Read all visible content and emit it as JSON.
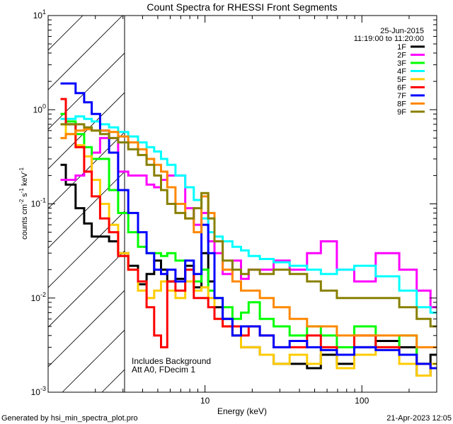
{
  "chart_data": {
    "type": "line",
    "title": "Count Spectra for RHESSI Front Segments",
    "xlabel": "Energy (keV)",
    "ylabel": "counts cm",
    "ylabel_sup1": "-2",
    "ylabel_mid": " s",
    "ylabel_sup2": "-1",
    "ylabel_end": " keV",
    "ylabel_sup3": "-1",
    "xscale": "log",
    "yscale": "log",
    "xlim": [
      1,
      300
    ],
    "ylim": [
      0.001,
      10
    ],
    "xticks": [
      {
        "value": 10,
        "label": "10"
      },
      {
        "value": 100,
        "label": "100"
      }
    ],
    "y_exponent_labels": [
      {
        "value": 0.001,
        "base": "10",
        "exp": "-3"
      },
      {
        "value": 0.01,
        "base": "10",
        "exp": "-2"
      },
      {
        "value": 0.1,
        "base": "10",
        "exp": "-1"
      },
      {
        "value": 1,
        "base": "10",
        "exp": "0"
      },
      {
        "value": 10,
        "base": "10",
        "exp": "1"
      }
    ],
    "date": "25-Jun-2015",
    "time_range": "11:19:00 to 11:20:00",
    "hatched_region": [
      1,
      3
    ],
    "annotation_lines": [
      "Includes Background",
      "Att A0, FDecim 1"
    ],
    "footer_left": "Generated by hsi_min_spectra_plot.pro",
    "footer_right": "21-Apr-2023 12:05",
    "series": [
      {
        "name": "1F",
        "color": "#000000",
        "x": [
          1.2,
          1.4,
          1.6,
          1.8,
          2.0,
          2.3,
          2.6,
          3.0,
          3.5,
          4.0,
          4.5,
          5.0,
          5.5,
          6.0,
          7.0,
          8.0,
          9.0,
          10.0,
          11.0,
          12.0,
          14.0,
          16.0,
          18.0,
          20.0,
          25.0,
          30.0,
          40.0,
          50.0,
          60.0,
          80.0,
          100.0,
          150.0,
          200.0,
          250.0,
          300.0
        ],
        "y": [
          0.26,
          0.16,
          0.09,
          0.062,
          0.045,
          0.045,
          0.04,
          0.03,
          0.022,
          0.014,
          0.018,
          0.025,
          0.02,
          0.015,
          0.016,
          0.022,
          0.013,
          0.03,
          0.015,
          0.008,
          0.006,
          0.004,
          0.003,
          0.003,
          0.0025,
          0.002,
          0.002,
          0.0018,
          0.0025,
          0.002,
          0.003,
          0.0035,
          0.003,
          0.0015,
          0.0025
        ]
      },
      {
        "name": "2F",
        "color": "#ff00ff",
        "x": [
          1.2,
          1.4,
          1.6,
          1.8,
          2.0,
          2.3,
          2.6,
          3.0,
          3.5,
          4.0,
          4.5,
          5.0,
          5.5,
          6.0,
          7.0,
          8.0,
          9.0,
          10.0,
          11.0,
          12.0,
          14.0,
          16.0,
          18.0,
          20.0,
          25.0,
          30.0,
          40.0,
          50.0,
          60.0,
          80.0,
          100.0,
          150.0,
          200.0,
          250.0,
          300.0
        ],
        "y": [
          0.18,
          0.18,
          0.2,
          0.22,
          0.35,
          0.5,
          0.5,
          0.22,
          0.2,
          0.2,
          0.16,
          0.15,
          0.18,
          0.2,
          0.2,
          0.09,
          0.06,
          0.08,
          0.04,
          0.03,
          0.018,
          0.025,
          0.016,
          0.02,
          0.02,
          0.025,
          0.02,
          0.03,
          0.04,
          0.02,
          0.015,
          0.03,
          0.02,
          0.012,
          0.008
        ]
      },
      {
        "name": "3F",
        "color": "#00ff00",
        "x": [
          1.2,
          1.4,
          1.6,
          1.8,
          2.0,
          2.3,
          2.6,
          3.0,
          3.5,
          4.0,
          4.5,
          5.0,
          5.5,
          6.0,
          7.0,
          8.0,
          9.0,
          10.0,
          11.0,
          12.0,
          14.0,
          16.0,
          18.0,
          20.0,
          25.0,
          30.0,
          40.0,
          50.0,
          60.0,
          80.0,
          100.0,
          150.0,
          200.0,
          250.0,
          300.0
        ],
        "y": [
          0.9,
          0.75,
          0.55,
          0.4,
          0.3,
          0.3,
          0.14,
          0.08,
          0.05,
          0.035,
          0.03,
          0.03,
          0.028,
          0.03,
          0.025,
          0.02,
          0.015,
          0.02,
          0.012,
          0.01,
          0.008,
          0.006,
          0.007,
          0.009,
          0.006,
          0.005,
          0.004,
          0.005,
          0.004,
          0.003,
          0.005,
          0.003,
          0.004,
          0.002,
          0.002
        ]
      },
      {
        "name": "4F",
        "color": "#00ffff",
        "x": [
          1.2,
          1.4,
          1.6,
          1.8,
          2.0,
          2.3,
          2.6,
          3.0,
          3.5,
          4.0,
          4.5,
          5.0,
          5.5,
          6.0,
          7.0,
          8.0,
          9.0,
          10.0,
          11.0,
          12.0,
          14.0,
          16.0,
          18.0,
          20.0,
          25.0,
          30.0,
          40.0,
          50.0,
          60.0,
          80.0,
          100.0,
          150.0,
          200.0,
          250.0,
          300.0
        ],
        "y": [
          0.8,
          0.8,
          0.85,
          0.8,
          0.75,
          0.7,
          0.65,
          0.58,
          0.52,
          0.45,
          0.4,
          0.36,
          0.3,
          0.26,
          0.2,
          0.15,
          0.11,
          0.07,
          0.05,
          0.045,
          0.04,
          0.035,
          0.032,
          0.028,
          0.026,
          0.024,
          0.022,
          0.02,
          0.018,
          0.02,
          0.022,
          0.017,
          0.012,
          0.008,
          0.007
        ]
      },
      {
        "name": "5F",
        "color": "#ffcc00",
        "x": [
          1.2,
          1.4,
          1.6,
          1.8,
          2.0,
          2.3,
          2.6,
          3.0,
          3.5,
          4.0,
          4.5,
          5.0,
          5.5,
          6.0,
          7.0,
          8.0,
          9.0,
          10.0,
          11.0,
          12.0,
          14.0,
          16.0,
          18.0,
          20.0,
          25.0,
          30.0,
          40.0,
          50.0,
          60.0,
          80.0,
          100.0,
          150.0,
          200.0,
          250.0,
          300.0
        ],
        "y": [
          0.7,
          0.55,
          0.42,
          0.32,
          0.18,
          0.1,
          0.06,
          0.03,
          0.02,
          0.012,
          0.01,
          0.012,
          0.015,
          0.012,
          0.01,
          0.015,
          0.012,
          0.013,
          0.01,
          0.006,
          0.005,
          0.004,
          0.003,
          0.003,
          0.0025,
          0.002,
          0.0025,
          0.002,
          0.003,
          0.0018,
          0.0025,
          0.003,
          0.002,
          0.0015,
          0.002
        ]
      },
      {
        "name": "6F",
        "color": "#ff0000",
        "x": [
          1.2,
          1.4,
          1.6,
          1.8,
          2.0,
          2.3,
          2.6,
          3.0,
          3.5,
          4.0,
          4.5,
          5.0,
          5.5,
          6.0,
          7.0,
          8.0,
          9.0,
          10.0,
          11.0,
          12.0,
          14.0,
          16.0,
          18.0,
          20.0,
          25.0,
          30.0,
          40.0,
          50.0,
          60.0,
          80.0,
          100.0,
          150.0,
          200.0,
          250.0,
          300.0
        ],
        "y": [
          1.3,
          0.7,
          0.4,
          0.22,
          0.12,
          0.07,
          0.05,
          0.028,
          0.02,
          0.015,
          0.008,
          0.004,
          0.003,
          0.015,
          0.012,
          0.02,
          0.01,
          0.01,
          0.008,
          0.006,
          0.005,
          0.005,
          0.004,
          0.005,
          0.004,
          0.003,
          0.003,
          0.004,
          0.003,
          0.0025,
          0.004,
          0.003,
          0.0025,
          0.002,
          0.0018
        ]
      },
      {
        "name": "7F",
        "color": "#0000ff",
        "x": [
          1.2,
          1.4,
          1.6,
          1.8,
          2.0,
          2.3,
          2.6,
          3.0,
          3.5,
          4.0,
          4.5,
          5.0,
          5.5,
          6.0,
          7.0,
          8.0,
          9.0,
          10.0,
          11.0,
          12.0,
          14.0,
          16.0,
          18.0,
          20.0,
          25.0,
          30.0,
          40.0,
          50.0,
          60.0,
          80.0,
          100.0,
          150.0,
          200.0,
          250.0,
          300.0
        ],
        "y": [
          1.9,
          1.9,
          1.5,
          1.2,
          0.9,
          0.6,
          0.35,
          0.14,
          0.08,
          0.05,
          0.03,
          0.02,
          0.018,
          0.02,
          0.015,
          0.025,
          0.018,
          0.06,
          0.03,
          0.01,
          0.006,
          0.004,
          0.005,
          0.005,
          0.004,
          0.003,
          0.0035,
          0.003,
          0.0028,
          0.0025,
          0.003,
          0.0028,
          0.0025,
          0.002,
          0.0018
        ]
      },
      {
        "name": "8F",
        "color": "#ff8800",
        "x": [
          1.2,
          1.4,
          1.6,
          1.8,
          2.0,
          2.3,
          2.6,
          3.0,
          3.5,
          4.0,
          4.5,
          5.0,
          5.5,
          6.0,
          7.0,
          8.0,
          9.0,
          10.0,
          11.0,
          12.0,
          14.0,
          16.0,
          18.0,
          20.0,
          25.0,
          30.0,
          40.0,
          50.0,
          60.0,
          80.0,
          100.0,
          150.0,
          200.0,
          250.0,
          300.0
        ],
        "y": [
          0.5,
          0.55,
          0.6,
          0.62,
          0.6,
          0.6,
          0.58,
          0.52,
          0.45,
          0.38,
          0.3,
          0.26,
          0.22,
          0.15,
          0.1,
          0.07,
          0.05,
          0.12,
          0.08,
          0.04,
          0.02,
          0.015,
          0.012,
          0.012,
          0.01,
          0.008,
          0.006,
          0.005,
          0.005,
          0.004,
          0.004,
          0.004,
          0.004,
          0.003,
          0.003
        ]
      },
      {
        "name": "9F",
        "color": "#888000",
        "x": [
          1.2,
          1.4,
          1.6,
          1.8,
          2.0,
          2.3,
          2.6,
          3.0,
          3.5,
          4.0,
          4.5,
          5.0,
          5.5,
          6.0,
          7.0,
          8.0,
          9.0,
          10.0,
          11.0,
          12.0,
          14.0,
          16.0,
          18.0,
          20.0,
          25.0,
          30.0,
          40.0,
          50.0,
          60.0,
          80.0,
          100.0,
          150.0,
          200.0,
          250.0,
          300.0
        ],
        "y": [
          0.7,
          0.7,
          0.7,
          0.65,
          0.6,
          0.55,
          0.5,
          0.45,
          0.38,
          0.33,
          0.26,
          0.2,
          0.14,
          0.1,
          0.08,
          0.07,
          0.09,
          0.13,
          0.07,
          0.04,
          0.025,
          0.02,
          0.018,
          0.02,
          0.018,
          0.02,
          0.018,
          0.015,
          0.012,
          0.01,
          0.01,
          0.01,
          0.008,
          0.006,
          0.005
        ]
      }
    ]
  }
}
